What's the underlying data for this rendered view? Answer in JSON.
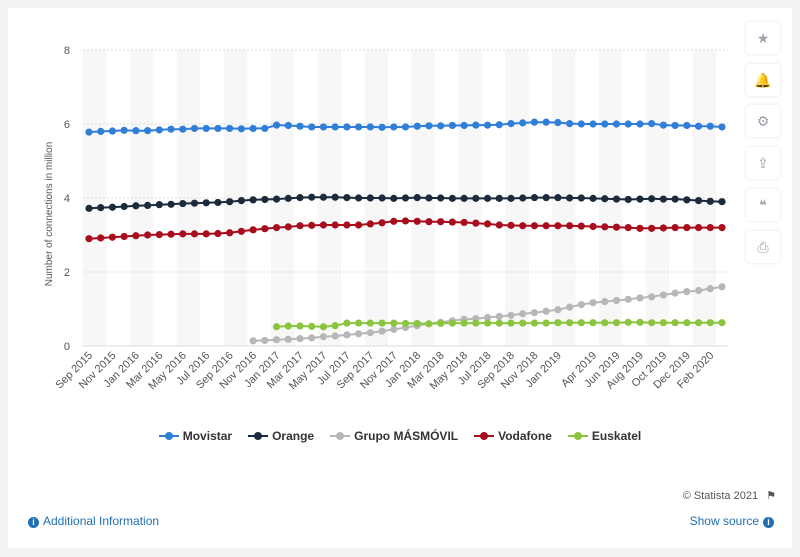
{
  "chart_data": {
    "type": "line",
    "title": "",
    "xlabel": "",
    "ylabel": "Number of connections in million",
    "ylim": [
      0,
      8
    ],
    "yticks": [
      0,
      2,
      4,
      6,
      8
    ],
    "grid": true,
    "legend_position": "bottom",
    "x": [
      "Sep 2015",
      "Oct 2015",
      "Nov 2015",
      "Dec 2015",
      "Jan 2016",
      "Feb 2016",
      "Mar 2016",
      "Apr 2016",
      "May 2016",
      "Jun 2016",
      "Jul 2016",
      "Aug 2016",
      "Sep 2016",
      "Oct 2016",
      "Nov 2016",
      "Dec 2016",
      "Jan 2017",
      "Feb 2017",
      "Mar 2017",
      "Apr 2017",
      "May 2017",
      "Jun 2017",
      "Jul 2017",
      "Aug 2017",
      "Sep 2017",
      "Oct 2017",
      "Nov 2017",
      "Dec 2017",
      "Jan 2018",
      "Feb 2018",
      "Mar 2018",
      "Apr 2018",
      "May 2018",
      "Jun 2018",
      "Jul 2018",
      "Aug 2018",
      "Sep 2018",
      "Oct 2018",
      "Nov 2018",
      "Dec 2018",
      "Jan 2019",
      "Feb 2019",
      "Mar 2019",
      "Apr 2019",
      "May 2019",
      "Jun 2019",
      "Jul 2019",
      "Aug 2019",
      "Sep 2019",
      "Oct 2019",
      "Nov 2019",
      "Dec 2019",
      "Jan 2020",
      "Feb 2020",
      "Mar 2020"
    ],
    "x_tick_labels": [
      "Sep 2015",
      "Nov 2015",
      "Jan 2016",
      "Mar 2016",
      "May 2016",
      "Jul 2016",
      "Sep 2016",
      "Nov 2016",
      "Jan 2017",
      "Mar 2017",
      "May 2017",
      "Jul 2017",
      "Sep 2017",
      "Nov 2017",
      "Jan 2018",
      "Mar 2018",
      "May 2018",
      "Jul 2018",
      "Sep 2018",
      "Nov 2018",
      "Jan 2019",
      "Apr 2019",
      "Jun 2019",
      "Aug 2019",
      "Oct 2019",
      "Dec 2019",
      "Feb 2020"
    ],
    "series": [
      {
        "name": "Movistar",
        "color": "#2f7ed8",
        "values": [
          5.78,
          5.8,
          5.81,
          5.83,
          5.82,
          5.82,
          5.84,
          5.86,
          5.86,
          5.88,
          5.88,
          5.88,
          5.88,
          5.87,
          5.88,
          5.88,
          5.97,
          5.96,
          5.94,
          5.92,
          5.92,
          5.92,
          5.92,
          5.92,
          5.92,
          5.91,
          5.92,
          5.92,
          5.94,
          5.95,
          5.95,
          5.96,
          5.96,
          5.97,
          5.97,
          5.98,
          6.01,
          6.03,
          6.05,
          6.05,
          6.04,
          6.01,
          6.0,
          6.0,
          6.0,
          6.0,
          6.0,
          6.0,
          6.01,
          5.97,
          5.96,
          5.96,
          5.94,
          5.94,
          5.92
        ]
      },
      {
        "name": "Orange",
        "color": "#1b2b3c",
        "values": [
          3.72,
          3.74,
          3.75,
          3.77,
          3.79,
          3.8,
          3.82,
          3.83,
          3.85,
          3.86,
          3.87,
          3.88,
          3.9,
          3.93,
          3.95,
          3.96,
          3.97,
          3.99,
          4.01,
          4.02,
          4.02,
          4.02,
          4.01,
          4.0,
          4.0,
          4.0,
          3.99,
          4.0,
          4.01,
          4.0,
          4.0,
          3.99,
          3.99,
          3.99,
          3.99,
          3.99,
          3.99,
          4.0,
          4.01,
          4.01,
          4.01,
          4.0,
          4.0,
          3.99,
          3.98,
          3.97,
          3.96,
          3.97,
          3.98,
          3.97,
          3.97,
          3.95,
          3.93,
          3.91,
          3.9
        ]
      },
      {
        "name": "Grupo MÁSMÓVIL",
        "color": "#b7b7b7",
        "values": [
          null,
          null,
          null,
          null,
          null,
          null,
          null,
          null,
          null,
          null,
          null,
          null,
          null,
          null,
          0.14,
          0.15,
          0.17,
          0.18,
          0.2,
          0.22,
          0.25,
          0.27,
          0.3,
          0.33,
          0.36,
          0.4,
          0.45,
          0.5,
          0.55,
          0.6,
          0.64,
          0.68,
          0.72,
          0.74,
          0.77,
          0.8,
          0.83,
          0.87,
          0.9,
          0.94,
          0.98,
          1.05,
          1.12,
          1.17,
          1.2,
          1.23,
          1.26,
          1.3,
          1.33,
          1.38,
          1.43,
          1.47,
          1.5,
          1.55,
          1.6
        ]
      },
      {
        "name": "Vodafone",
        "color": "#a80d1d",
        "values": [
          2.9,
          2.92,
          2.94,
          2.96,
          2.98,
          3.0,
          3.01,
          3.02,
          3.03,
          3.03,
          3.03,
          3.04,
          3.06,
          3.1,
          3.14,
          3.17,
          3.2,
          3.22,
          3.25,
          3.26,
          3.27,
          3.27,
          3.27,
          3.27,
          3.3,
          3.33,
          3.37,
          3.38,
          3.37,
          3.36,
          3.36,
          3.35,
          3.34,
          3.32,
          3.3,
          3.27,
          3.26,
          3.25,
          3.25,
          3.25,
          3.25,
          3.25,
          3.24,
          3.23,
          3.22,
          3.21,
          3.2,
          3.18,
          3.18,
          3.19,
          3.2,
          3.2,
          3.2,
          3.2,
          3.2
        ]
      },
      {
        "name": "Euskatel",
        "color": "#8bc540",
        "values": [
          null,
          null,
          null,
          null,
          null,
          null,
          null,
          null,
          null,
          null,
          null,
          null,
          null,
          null,
          null,
          null,
          0.52,
          0.54,
          0.54,
          0.53,
          0.52,
          0.55,
          0.62,
          0.62,
          0.62,
          0.62,
          0.62,
          0.61,
          0.61,
          0.6,
          0.61,
          0.62,
          0.62,
          0.62,
          0.62,
          0.62,
          0.62,
          0.62,
          0.62,
          0.62,
          0.63,
          0.63,
          0.63,
          0.63,
          0.63,
          0.63,
          0.64,
          0.64,
          0.63,
          0.63,
          0.63,
          0.63,
          0.63,
          0.63,
          0.63
        ]
      }
    ]
  },
  "sidebar": {
    "icons": [
      "star-icon",
      "bell-icon",
      "gear-icon",
      "share-icon",
      "quote-icon",
      "print-icon"
    ],
    "glyphs": [
      "★",
      "🔔",
      "⚙",
      "⇪",
      "❝",
      "⎙"
    ]
  },
  "footer": {
    "credit": "© Statista 2021",
    "additional_info": "Additional Information",
    "show_source": "Show source"
  }
}
